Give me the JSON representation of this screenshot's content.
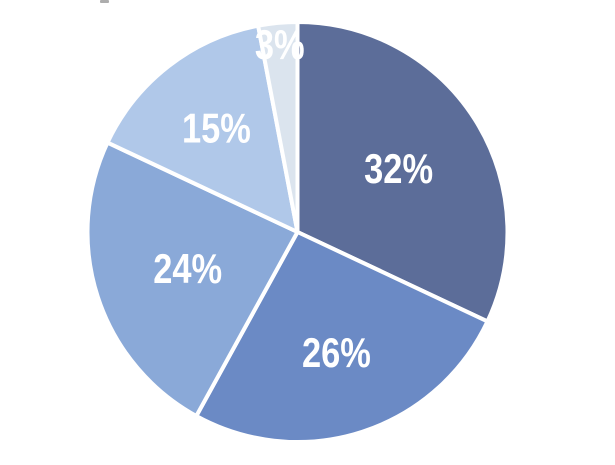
{
  "chart_data": {
    "type": "pie",
    "title": "",
    "legend": "none",
    "direction": "clockwise",
    "start_angle_deg": 0,
    "background_color": "#ffffff",
    "separator_color": "#ffffff",
    "label_color": "#ffffff",
    "slices": [
      {
        "label": "32%",
        "value": 32,
        "color": "#5c6d99"
      },
      {
        "label": "26%",
        "value": 26,
        "color": "#6b8ac5"
      },
      {
        "label": "24%",
        "value": 24,
        "color": "#8aa9d8"
      },
      {
        "label": "15%",
        "value": 15,
        "color": "#b0c8e9"
      },
      {
        "label": "3%",
        "value": 3,
        "color": "#dbe4ee"
      }
    ],
    "label_radius_fractions": [
      0.57,
      0.6,
      0.55,
      0.63,
      0.9
    ]
  }
}
